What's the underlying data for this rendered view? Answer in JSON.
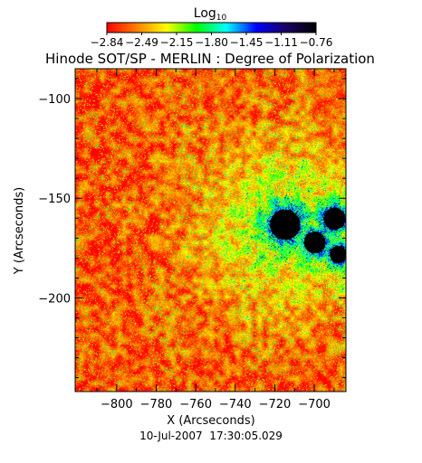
{
  "chart_data": {
    "type": "heatmap",
    "title": "Hinode SOT/SP - MERLIN : Degree of Polarization",
    "xlabel": "X (Arcseconds)",
    "ylabel": "Y (Arcseconds)",
    "footer": "10-Jul-2007  17:30:05.029",
    "xlim": [
      -821,
      -684
    ],
    "ylim": [
      -247,
      -85
    ],
    "x_ticks": [
      {
        "value": -800,
        "label": "−800"
      },
      {
        "value": -780,
        "label": "−780"
      },
      {
        "value": -760,
        "label": "−760"
      },
      {
        "value": -740,
        "label": "−740"
      },
      {
        "value": -720,
        "label": "−720"
      },
      {
        "value": -700,
        "label": "−700"
      }
    ],
    "y_ticks": [
      {
        "value": -100,
        "label": "−100"
      },
      {
        "value": -150,
        "label": "−150"
      },
      {
        "value": -200,
        "label": "−200"
      }
    ],
    "colorbar": {
      "title": "Log",
      "title_subscript": "10",
      "scale": "log10",
      "range": [
        -2.84,
        -0.76
      ],
      "tick_labels": [
        "−2.84",
        "−2.49",
        "−2.15",
        "−1.80",
        "−1.45",
        "−1.11",
        "−0.76"
      ],
      "colors": [
        "#ff0000",
        "#ff8000",
        "#ffff00",
        "#00ff00",
        "#00ffff",
        "#0000ff",
        "#1a0060",
        "#000000"
      ]
    },
    "features": [
      {
        "x": -715,
        "y": -163,
        "size_arcsec": 7,
        "level": -0.85
      },
      {
        "x": -700,
        "y": -172,
        "size_arcsec": 5,
        "level": -0.95
      },
      {
        "x": -690,
        "y": -160,
        "size_arcsec": 5,
        "level": -1.0
      },
      {
        "x": -688,
        "y": -178,
        "size_arcsec": 4,
        "level": -1.05
      }
    ]
  }
}
